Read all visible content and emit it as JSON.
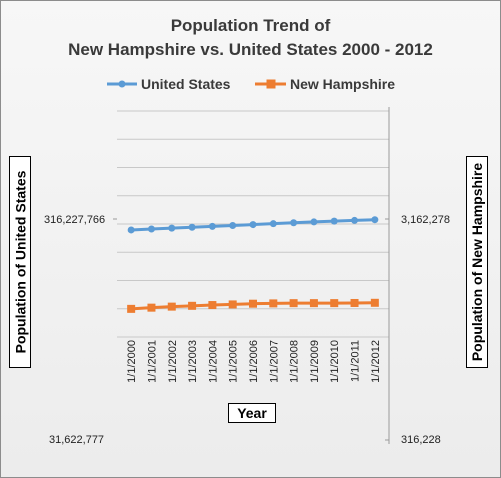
{
  "chart_data": {
    "type": "line",
    "title_lines": [
      "Population Trend of",
      "New Hampshire vs. United States 2000 - 2012"
    ],
    "xlabel": "Year",
    "ylabel_left": "Population of United States",
    "ylabel_right": "Population of New Hampshire",
    "left_tick_labels": [
      "316,227,766",
      "31,622,777"
    ],
    "right_tick_labels": [
      "3,162,278",
      "316,228"
    ],
    "left_axis": {
      "scale": "log",
      "ticks": [
        31622777,
        316227766
      ]
    },
    "right_axis": {
      "scale": "log",
      "ticks": [
        316228,
        3162278
      ]
    },
    "categories": [
      "1/1/2000",
      "1/1/2001",
      "1/1/2002",
      "1/1/2003",
      "1/1/2004",
      "1/1/2005",
      "1/1/2006",
      "1/1/2007",
      "1/1/2008",
      "1/1/2009",
      "1/1/2010",
      "1/1/2011",
      "1/1/2012"
    ],
    "series": [
      {
        "name": "United States",
        "axis": "left",
        "color": "#5b9bd5",
        "marker": "circle",
        "values": [
          282162411,
          284968955,
          287625193,
          290107933,
          292805298,
          295516599,
          298379912,
          301231207,
          304093966,
          306771529,
          309330219,
          311591917,
          313914040
        ]
      },
      {
        "name": "New Hampshire",
        "axis": "right",
        "color": "#ed7d31",
        "marker": "square",
        "values": [
          1239882,
          1255517,
          1269089,
          1279840,
          1290121,
          1298492,
          1308389,
          1312540,
          1315906,
          1316102,
          1316470,
          1318194,
          1320718
        ]
      }
    ],
    "grid": "horizontal",
    "legend_position": "top"
  }
}
